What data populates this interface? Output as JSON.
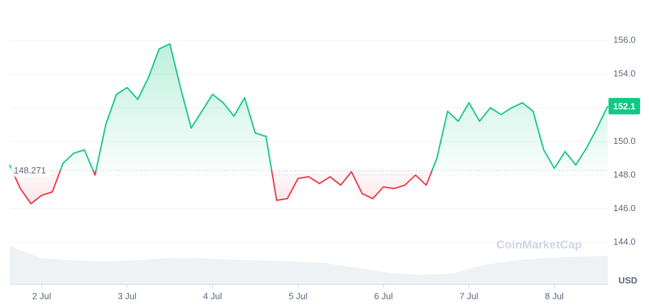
{
  "chart_data": {
    "type": "line",
    "categories": [
      null,
      null,
      null,
      "2 Jul",
      null,
      null,
      null,
      null,
      null,
      null,
      null,
      "3 Jul",
      null,
      null,
      null,
      null,
      null,
      null,
      null,
      "4 Jul",
      null,
      null,
      null,
      null,
      null,
      null,
      null,
      "5 Jul",
      null,
      null,
      null,
      null,
      null,
      null,
      null,
      "6 Jul",
      null,
      null,
      null,
      null,
      null,
      null,
      null,
      "7 Jul",
      null,
      null,
      null,
      null,
      null,
      null,
      null,
      "8 Jul",
      null,
      null,
      null,
      null,
      null
    ],
    "values": [
      148.6,
      147.2,
      146.3,
      146.8,
      147.0,
      148.7,
      149.3,
      149.5,
      148.0,
      151.0,
      152.8,
      153.2,
      152.5,
      153.8,
      155.5,
      155.8,
      153.2,
      150.8,
      151.8,
      152.8,
      152.3,
      151.5,
      152.6,
      150.5,
      150.3,
      146.5,
      146.6,
      147.8,
      147.9,
      147.5,
      147.9,
      147.4,
      148.2,
      146.9,
      146.6,
      147.3,
      147.2,
      147.4,
      148.0,
      147.4,
      149.0,
      151.8,
      151.2,
      152.3,
      151.2,
      152.0,
      151.6,
      152.0,
      152.3,
      151.8,
      149.5,
      148.4,
      149.4,
      148.6,
      149.6,
      150.8,
      152.1
    ],
    "up_color": "#16c784",
    "down_color": "#ea3943",
    "baseline": 148.271,
    "last_label": "152.1",
    "ylim": [
      141.5,
      158.0
    ],
    "yticks": [
      {
        "value": 144,
        "label": "144.0"
      },
      {
        "value": 146,
        "label": "146.0"
      },
      {
        "value": 148,
        "label": "148.0"
      },
      {
        "value": 150,
        "label": "150.0"
      },
      {
        "value": 152,
        "label": "152.0"
      },
      {
        "value": 154,
        "label": "154.0"
      },
      {
        "value": 156,
        "label": "156.0"
      }
    ],
    "y_unit": "USD",
    "grid": true,
    "watermark": "CoinMarketCap",
    "volume": {
      "values": [
        80,
        55,
        50,
        48,
        50,
        55,
        55,
        52,
        50,
        48,
        45,
        35,
        25,
        20,
        22,
        40,
        50,
        55,
        58,
        60
      ],
      "ylim": [
        0,
        100
      ],
      "color": "#eff2f5"
    }
  }
}
